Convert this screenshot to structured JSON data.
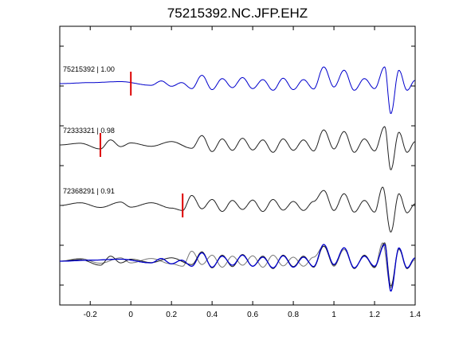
{
  "chart_data": {
    "type": "line",
    "title": "75215392.NC.JFP.EHZ",
    "xlim": [
      -0.35,
      1.4
    ],
    "xticks": [
      -0.2,
      0,
      0.2,
      0.4,
      0.6,
      0.8,
      1,
      1.2,
      1.4
    ],
    "xtick_labels": [
      "-0.2",
      "0",
      "0.2",
      "0.4",
      "0.6",
      "0.8",
      "1",
      "1.2",
      "1.4"
    ],
    "ytick_count": 7,
    "colors": {
      "primary": "#0000cc",
      "other": "#222222",
      "other_light": "#777777",
      "pick": "#dd0000"
    },
    "traces": [
      {
        "label": "75215392 | 1.00",
        "color": "#0000cc",
        "pick_time": 0.0,
        "waveform": [
          [
            -0.35,
            0
          ],
          [
            -0.2,
            0.3
          ],
          [
            -0.05,
            0.6
          ],
          [
            0.1,
            -0.5
          ],
          [
            0.15,
            0.8
          ],
          [
            0.2,
            -0.8
          ],
          [
            0.25,
            0.3
          ],
          [
            0.3,
            -1.5
          ],
          [
            0.35,
            2.5
          ],
          [
            0.4,
            -1.8
          ],
          [
            0.45,
            1.5
          ],
          [
            0.5,
            -1.2
          ],
          [
            0.55,
            1.8
          ],
          [
            0.6,
            -1.5
          ],
          [
            0.65,
            1.2
          ],
          [
            0.7,
            -2.0
          ],
          [
            0.75,
            1.6
          ],
          [
            0.8,
            -1.8
          ],
          [
            0.85,
            1.2
          ],
          [
            0.9,
            -1.6
          ],
          [
            0.95,
            5.0
          ],
          [
            1.0,
            -1.0
          ],
          [
            1.05,
            4.0
          ],
          [
            1.1,
            -2.0
          ],
          [
            1.15,
            1.5
          ],
          [
            1.2,
            -1.5
          ],
          [
            1.25,
            5.0
          ],
          [
            1.28,
            -9.0
          ],
          [
            1.32,
            4.0
          ],
          [
            1.36,
            -2.0
          ],
          [
            1.4,
            1.0
          ]
        ]
      },
      {
        "label": "72333321 | 0.98",
        "color": "#222222",
        "pick_time": -0.15,
        "waveform": [
          [
            -0.35,
            0
          ],
          [
            -0.25,
            0.5
          ],
          [
            -0.15,
            -1.2
          ],
          [
            -0.1,
            1.5
          ],
          [
            -0.05,
            -0.5
          ],
          [
            0.0,
            0.6
          ],
          [
            0.1,
            -0.4
          ],
          [
            0.2,
            1.0
          ],
          [
            0.3,
            -1.0
          ],
          [
            0.35,
            2.8
          ],
          [
            0.4,
            -2.0
          ],
          [
            0.45,
            1.8
          ],
          [
            0.5,
            -1.6
          ],
          [
            0.55,
            2.0
          ],
          [
            0.6,
            -1.5
          ],
          [
            0.65,
            1.5
          ],
          [
            0.7,
            -2.2
          ],
          [
            0.75,
            1.8
          ],
          [
            0.8,
            -1.6
          ],
          [
            0.85,
            1.5
          ],
          [
            0.9,
            -1.8
          ],
          [
            0.95,
            4.5
          ],
          [
            1.0,
            -1.2
          ],
          [
            1.05,
            4.0
          ],
          [
            1.1,
            -2.2
          ],
          [
            1.15,
            1.8
          ],
          [
            1.2,
            -1.8
          ],
          [
            1.25,
            5.5
          ],
          [
            1.28,
            -7.5
          ],
          [
            1.32,
            3.8
          ],
          [
            1.36,
            -2.2
          ],
          [
            1.4,
            1.0
          ]
        ]
      },
      {
        "label": "72368291 | 0.91",
        "color": "#222222",
        "pick_time": 0.255,
        "waveform": [
          [
            -0.35,
            0
          ],
          [
            -0.25,
            0.8
          ],
          [
            -0.15,
            -0.6
          ],
          [
            -0.05,
            1.0
          ],
          [
            0.0,
            -0.5
          ],
          [
            0.1,
            0.8
          ],
          [
            0.2,
            -0.8
          ],
          [
            0.255,
            -1.5
          ],
          [
            0.3,
            3.0
          ],
          [
            0.35,
            -1.0
          ],
          [
            0.4,
            1.8
          ],
          [
            0.45,
            -1.8
          ],
          [
            0.5,
            1.5
          ],
          [
            0.55,
            -1.2
          ],
          [
            0.6,
            1.6
          ],
          [
            0.65,
            -1.8
          ],
          [
            0.7,
            1.8
          ],
          [
            0.75,
            -1.4
          ],
          [
            0.8,
            1.2
          ],
          [
            0.85,
            -1.5
          ],
          [
            0.9,
            1.2
          ],
          [
            0.95,
            4.5
          ],
          [
            1.0,
            -1.5
          ],
          [
            1.05,
            3.5
          ],
          [
            1.1,
            -2.0
          ],
          [
            1.15,
            1.5
          ],
          [
            1.2,
            -2.0
          ],
          [
            1.24,
            5.5
          ],
          [
            1.28,
            -8.0
          ],
          [
            1.32,
            3.5
          ],
          [
            1.36,
            -2.2
          ],
          [
            1.4,
            0.5
          ]
        ]
      }
    ]
  }
}
